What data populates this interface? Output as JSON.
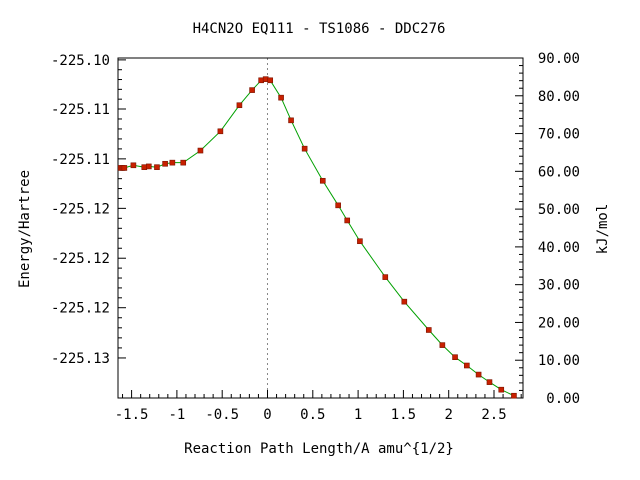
{
  "chart_data": {
    "type": "line",
    "title": "H4CN2O   EQ111 - TS1086 - DDC276",
    "xlabel": "Reaction Path Length/A amu^{1/2}",
    "ylabel_left": "Energy/Hartree",
    "ylabel_right": "kJ/mol",
    "xlim": [
      -1.65,
      2.82
    ],
    "ylim_kj": [
      0,
      90
    ],
    "x_ticks": [
      {
        "value": -1.5,
        "label": "-1.5"
      },
      {
        "value": -1,
        "label": "-1"
      },
      {
        "value": -0.5,
        "label": "-0.5"
      },
      {
        "value": 0,
        "label": "0"
      },
      {
        "value": 0.5,
        "label": "0.5"
      },
      {
        "value": 1,
        "label": "1"
      },
      {
        "value": 1.5,
        "label": "1.5"
      },
      {
        "value": 2,
        "label": "2"
      },
      {
        "value": 2.5,
        "label": "2.5"
      }
    ],
    "left_ticks": [
      {
        "kj": 89.5,
        "label": "-225.10"
      },
      {
        "kj": 76.5,
        "label": "-225.11"
      },
      {
        "kj": 63.3,
        "label": "-225.11"
      },
      {
        "kj": 50.2,
        "label": "-225.12"
      },
      {
        "kj": 37.0,
        "label": "-225.12"
      },
      {
        "kj": 23.9,
        "label": "-225.12"
      },
      {
        "kj": 10.6,
        "label": "-225.13"
      }
    ],
    "right_ticks": [
      {
        "kj": 0,
        "label": "0.00"
      },
      {
        "kj": 10,
        "label": "10.00"
      },
      {
        "kj": 20,
        "label": "20.00"
      },
      {
        "kj": 30,
        "label": "30.00"
      },
      {
        "kj": 40,
        "label": "40.00"
      },
      {
        "kj": 50,
        "label": "50.00"
      },
      {
        "kj": 60,
        "label": "60.00"
      },
      {
        "kj": 70,
        "label": "70.00"
      },
      {
        "kj": 80,
        "label": "80.00"
      },
      {
        "kj": 90,
        "label": "90.00"
      }
    ],
    "ts_x": 0,
    "colors": {
      "line": "#00a000",
      "marker": "#c82000",
      "marker_edge": "#7a1400",
      "ts_line": "#888888"
    },
    "series": [
      {
        "x": [
          -1.62,
          -1.6,
          -1.58,
          -1.48,
          -1.36,
          -1.31,
          -1.22,
          -1.13,
          -1.05,
          -0.93,
          -0.74,
          -0.52,
          -0.31,
          -0.17,
          -0.07,
          -0.02,
          0.03,
          0.15,
          0.26,
          0.41,
          0.61,
          0.78,
          0.88,
          1.02,
          1.3,
          1.51,
          1.78,
          1.93,
          2.07,
          2.2,
          2.33,
          2.45,
          2.58,
          2.72
        ],
        "kj": [
          60.9,
          60.9,
          60.9,
          61.6,
          61.1,
          61.3,
          61.1,
          62.0,
          62.3,
          62.3,
          65.5,
          70.6,
          77.5,
          81.5,
          84.1,
          84.4,
          84.1,
          79.5,
          73.5,
          66.0,
          57.5,
          51.0,
          47.0,
          41.5,
          32.0,
          25.5,
          18.0,
          14.0,
          10.8,
          8.6,
          6.2,
          4.2,
          2.2,
          0.6
        ]
      }
    ]
  }
}
